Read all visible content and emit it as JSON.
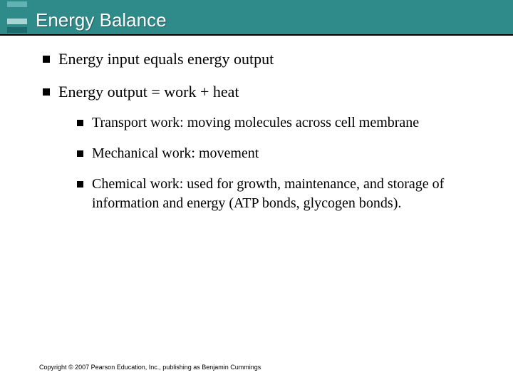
{
  "header": {
    "title": "Energy Balance",
    "bg_color": "#2f8a8a",
    "title_color": "#ffffff",
    "logo_bars": [
      "#5fb3b3",
      "#2f8a8a",
      "#a8d4d4",
      "#1a6b6b"
    ]
  },
  "bullets_l1": [
    {
      "text": "Energy input equals energy output"
    },
    {
      "text": "Energy output = work + heat"
    }
  ],
  "bullets_l2": [
    {
      "text": "Transport work: moving molecules across cell membrane"
    },
    {
      "text": "Mechanical work: movement"
    },
    {
      "text": "Chemical work: used for growth, maintenance, and storage of information and energy (ATP bonds, glycogen bonds)."
    }
  ],
  "footer": {
    "text": "Copyright © 2007 Pearson Education, Inc., publishing as Benjamin Cummings"
  },
  "style": {
    "body_font_l1_size": 22,
    "body_font_l2_size": 20,
    "marker_color": "#000000"
  }
}
